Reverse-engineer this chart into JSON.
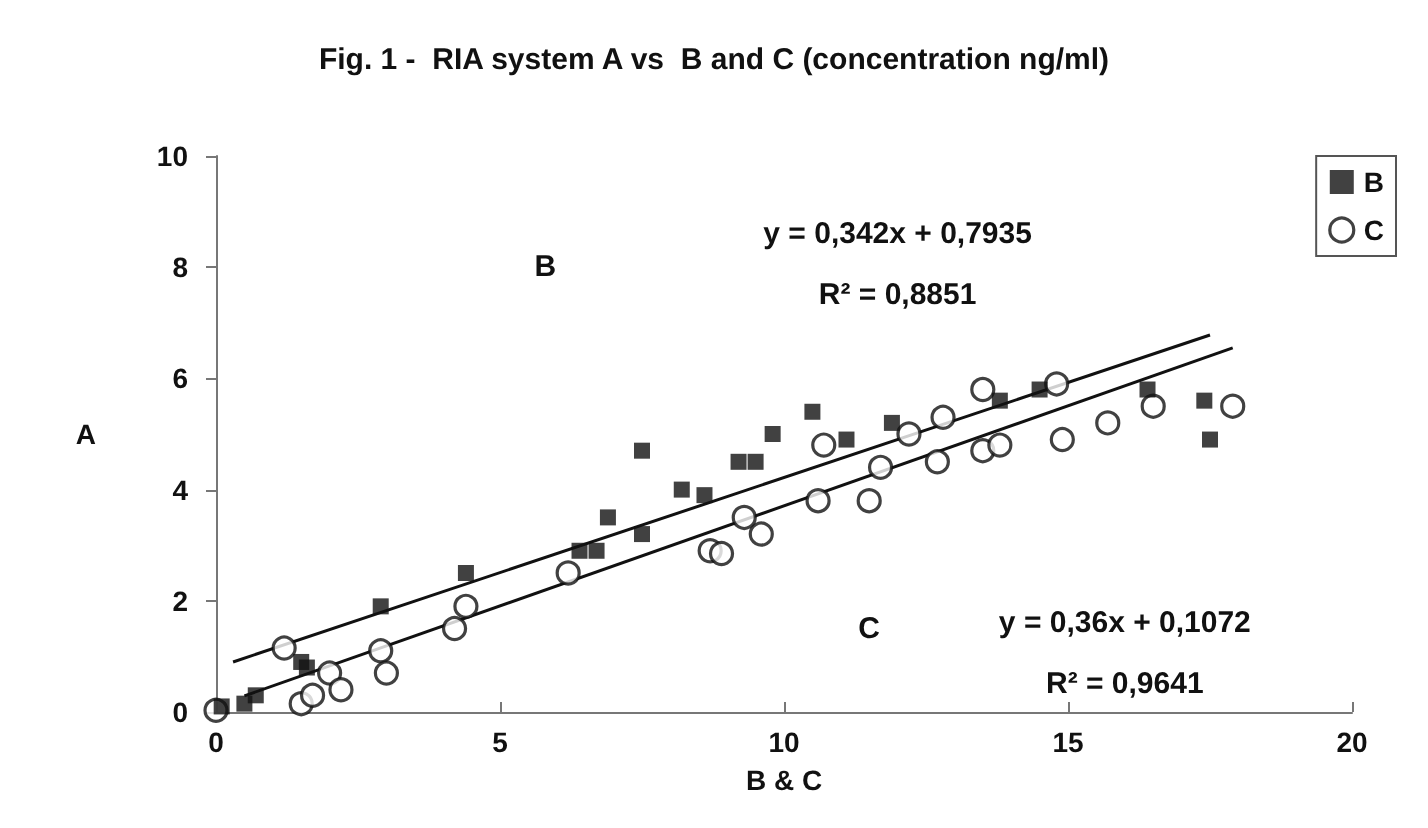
{
  "chart_data": {
    "type": "scatter",
    "title": "Fig. 1 -  RIA system A vs  B and C (concentration ng/ml)",
    "xlabel": "B & C",
    "ylabel": "A",
    "xlim": [
      0,
      20
    ],
    "xticks": [
      0,
      5,
      10,
      15,
      20
    ],
    "ylim": [
      0,
      10
    ],
    "yticks": [
      0,
      2,
      4,
      6,
      8,
      10
    ],
    "grid": false,
    "legend": "top right",
    "series": [
      {
        "name": "B",
        "color": "#111111",
        "marker": "square",
        "x": [
          0.1,
          0.5,
          0.7,
          1.5,
          1.6,
          2.9,
          4.4,
          6.4,
          6.7,
          6.9,
          7.5,
          7.5,
          8.2,
          8.6,
          9.2,
          9.5,
          9.8,
          10.5,
          11.1,
          11.9,
          13.8,
          14.5,
          16.4,
          17.4,
          17.5
        ],
        "values": [
          0.1,
          0.15,
          0.3,
          0.9,
          0.8,
          1.9,
          2.5,
          2.9,
          2.9,
          3.5,
          4.7,
          3.2,
          4.0,
          3.9,
          4.5,
          4.5,
          5.0,
          5.4,
          4.9,
          5.2,
          5.6,
          5.8,
          5.8,
          5.6,
          4.9
        ]
      },
      {
        "name": "C",
        "color": "#111111",
        "marker": "circle",
        "x": [
          0,
          1.2,
          1.5,
          1.7,
          2.0,
          2.2,
          2.9,
          3.0,
          4.2,
          4.4,
          6.2,
          8.7,
          8.9,
          9.3,
          9.6,
          10.6,
          10.7,
          11.5,
          11.7,
          12.2,
          12.7,
          12.8,
          13.5,
          13.5,
          13.8,
          14.8,
          14.9,
          15.7,
          16.5,
          17.9
        ],
        "values": [
          0.03,
          1.15,
          0.15,
          0.3,
          0.7,
          0.4,
          1.1,
          0.7,
          1.5,
          1.9,
          2.5,
          2.9,
          2.85,
          3.5,
          3.2,
          3.8,
          4.8,
          3.8,
          4.4,
          5.0,
          4.5,
          5.3,
          5.8,
          4.7,
          4.8,
          5.9,
          4.9,
          5.2,
          5.5,
          5.5
        ]
      },
      {
        "type": "line",
        "color": "#111111",
        "marker": "none",
        "x": [
          0.3,
          17.5
        ],
        "values": [
          0.9,
          6.78
        ]
      },
      {
        "type": "line",
        "color": "#111111",
        "marker": "none",
        "x": [
          0.5,
          17.9
        ],
        "values": [
          0.29,
          6.55
        ]
      }
    ],
    "annotations": [
      "B",
      "y = 0,342x + 0,7935",
      "R² = 0,8851",
      "C",
      "y = 0,36x + 0,1072",
      "R² = 0,9641"
    ]
  }
}
